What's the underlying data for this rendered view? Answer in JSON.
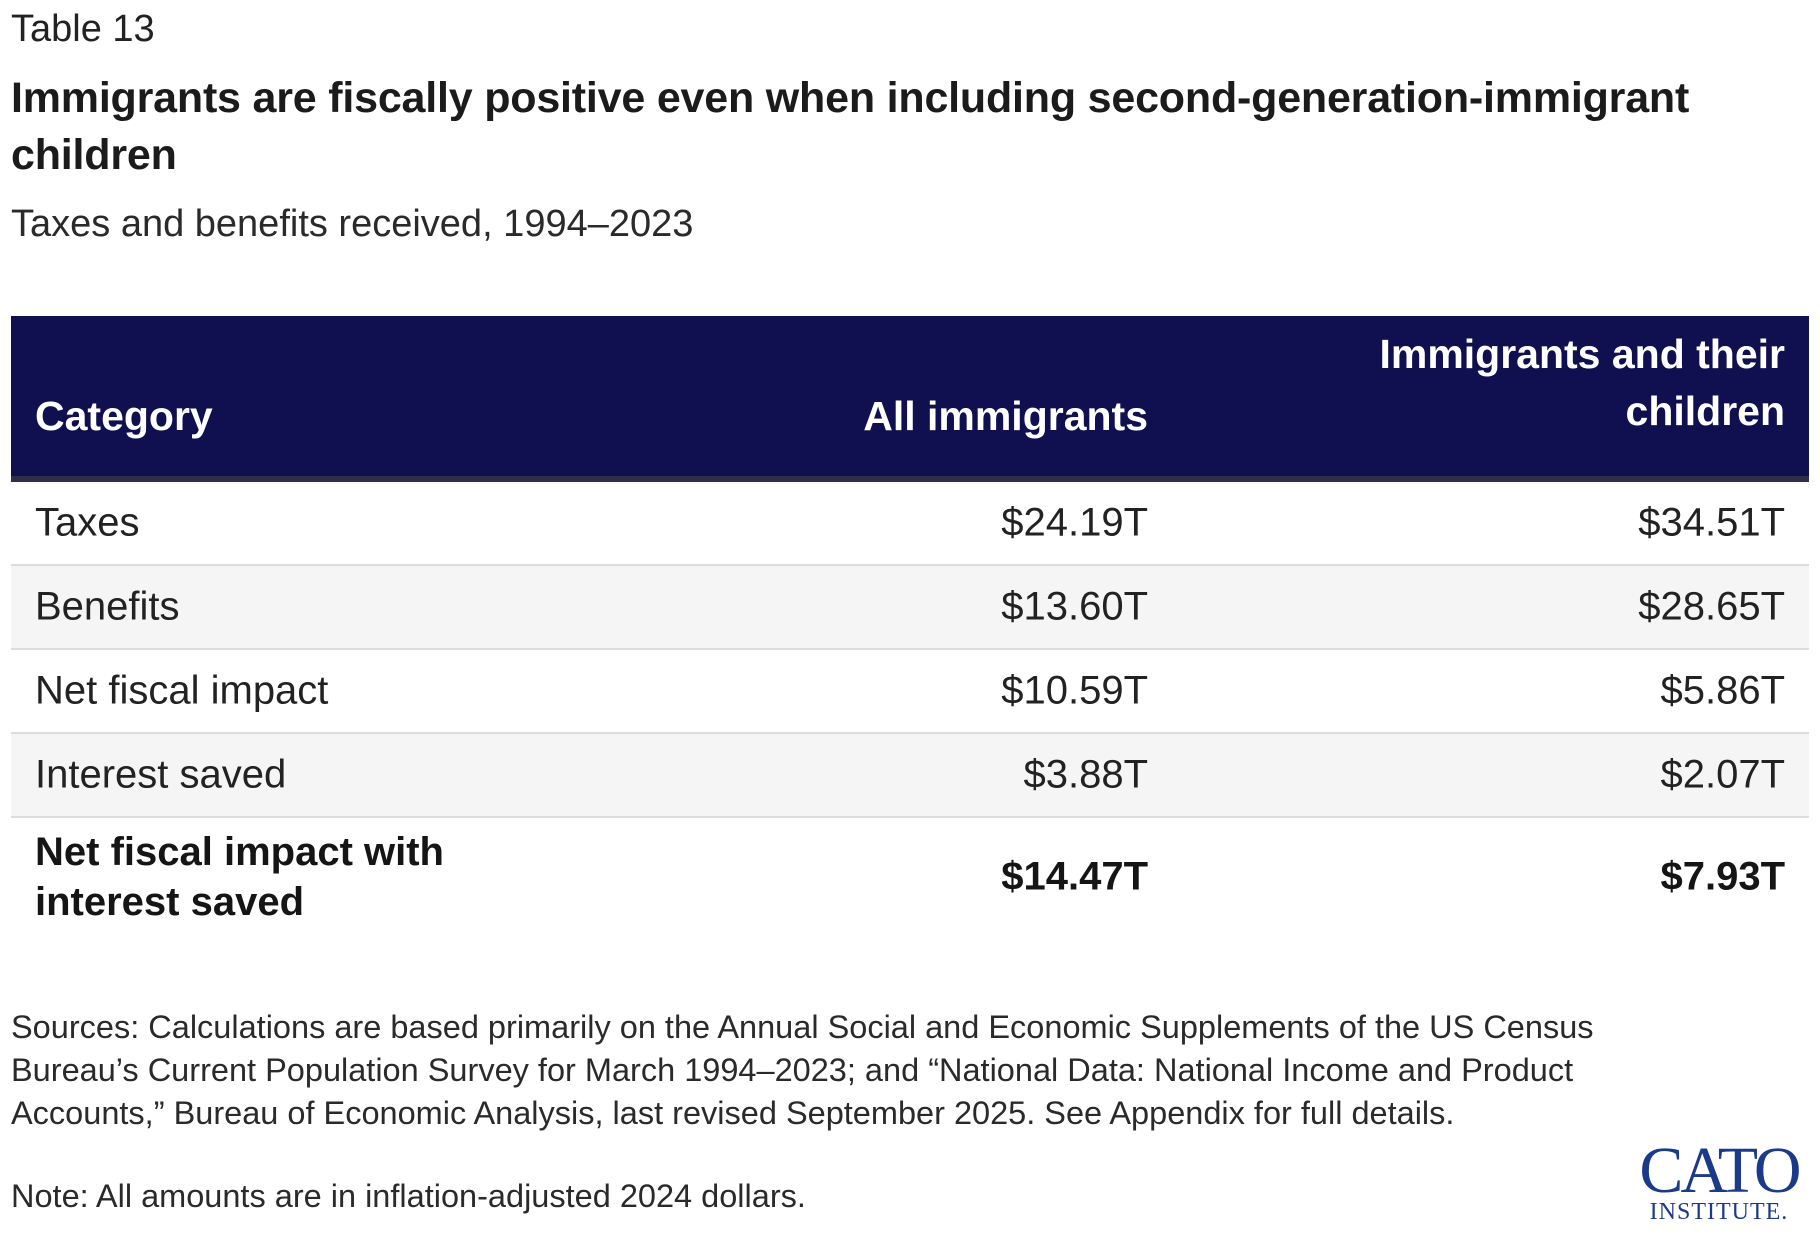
{
  "table_label": "Table 13",
  "title": "Immigrants are fiscally positive even when including second-generation-immigrant children",
  "subtitle": "Taxes and benefits received, 1994–2023",
  "table": {
    "headers": {
      "category": "Category",
      "all_immigrants": "All immigrants",
      "with_children": "Immigrants and their children"
    },
    "rows": [
      {
        "category": "Taxes",
        "all_immigrants": "$24.19T",
        "with_children": "$34.51T"
      },
      {
        "category": "Benefits",
        "all_immigrants": "$13.60T",
        "with_children": "$28.65T"
      },
      {
        "category": "Net fiscal impact",
        "all_immigrants": "$10.59T",
        "with_children": "$5.86T"
      },
      {
        "category": "Interest saved",
        "all_immigrants": "$3.88T",
        "with_children": "$2.07T"
      }
    ],
    "total": {
      "category": "Net fiscal impact with interest saved",
      "all_immigrants": "$14.47T",
      "with_children": "$7.93T"
    }
  },
  "sources": "Sources: Calculations are based primarily on the Annual Social and Economic Supplements of the US Census Bureau’s Current Population Survey for March 1994–2023; and “National Data: National Income and Product Accounts,” Bureau of Economic Analysis, last revised September 2025. See Appendix for full details.",
  "note": "Note: All amounts are in inflation-adjusted 2024 dollars.",
  "logo": {
    "main": "CATO",
    "sub": "INSTITUTE."
  },
  "colors": {
    "header_bg": "#101050",
    "alt_row_bg": "#f5f5f5",
    "logo": "#1c3a8a"
  }
}
